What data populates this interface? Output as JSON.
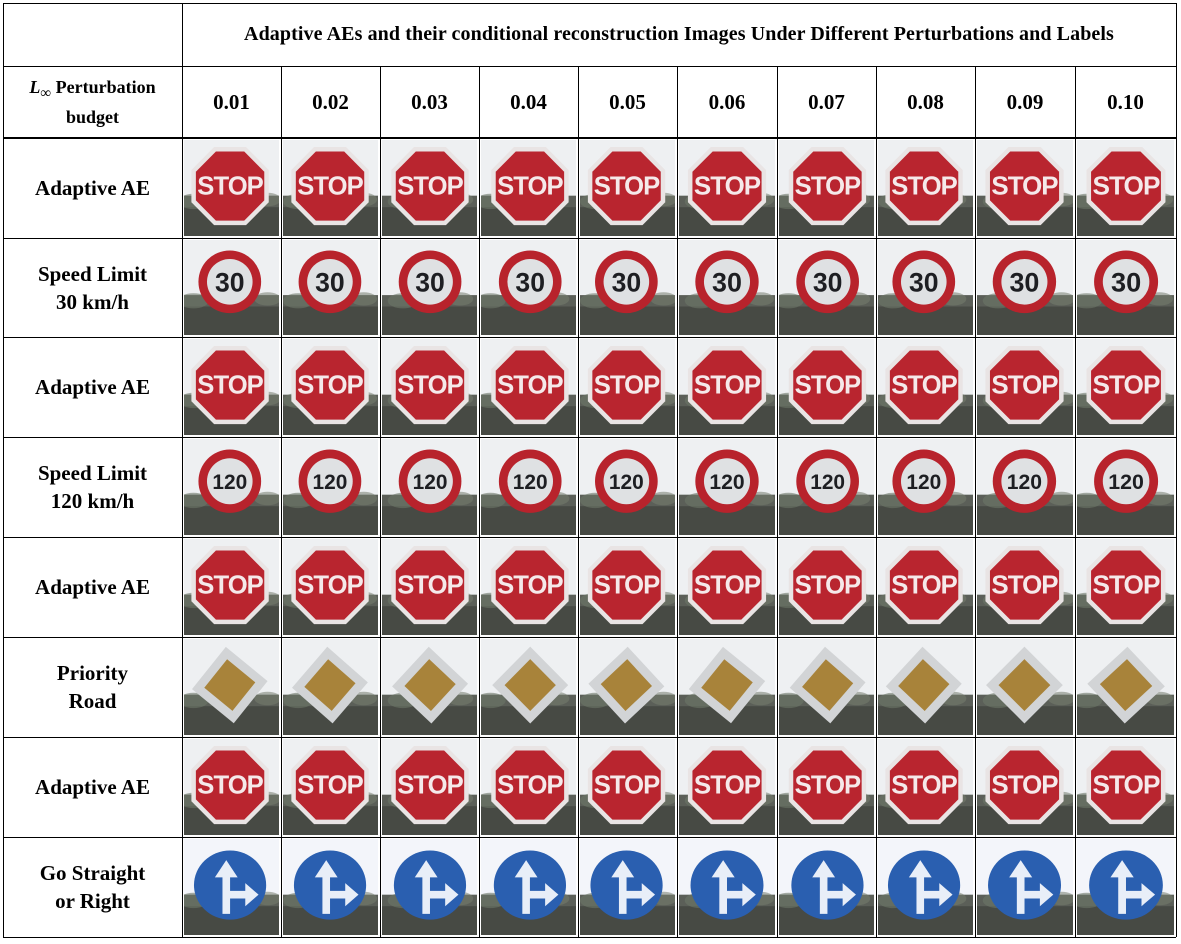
{
  "header": {
    "title": "Adaptive AEs and their conditional reconstruction Images Under Different Perturbations and Labels",
    "budget_label_symbol": "L",
    "budget_label_sub": "∞",
    "budget_label_line1": " Perturbation",
    "budget_label_line2": "budget"
  },
  "perturbations": [
    "0.01",
    "0.02",
    "0.03",
    "0.04",
    "0.05",
    "0.06",
    "0.07",
    "0.08",
    "0.09",
    "0.10"
  ],
  "rows": [
    {
      "line1": "Adaptive AE",
      "line2": "",
      "sign": "stop",
      "sign_text": "STOP"
    },
    {
      "line1": "Speed Limit",
      "line2": "30 km/h",
      "sign": "speed",
      "sign_text": "30"
    },
    {
      "line1": "Adaptive AE",
      "line2": "",
      "sign": "stop",
      "sign_text": "STOP"
    },
    {
      "line1": "Speed Limit",
      "line2": "120 km/h",
      "sign": "speed",
      "sign_text": "120"
    },
    {
      "line1": "Adaptive AE",
      "line2": "",
      "sign": "stop",
      "sign_text": "STOP"
    },
    {
      "line1": "Priority",
      "line2": "Road",
      "sign": "priority",
      "sign_text": ""
    },
    {
      "line1": "Adaptive AE",
      "line2": "",
      "sign": "stop",
      "sign_text": "STOP"
    },
    {
      "line1": "Go Straight",
      "line2": "or Right",
      "sign": "straight-right",
      "sign_text": ""
    }
  ],
  "colors": {
    "stop_red": "#b9252f",
    "speed_ring": "#b8232c",
    "priority_yellow": "#a8833a",
    "blue_sign": "#2a5fb0"
  }
}
